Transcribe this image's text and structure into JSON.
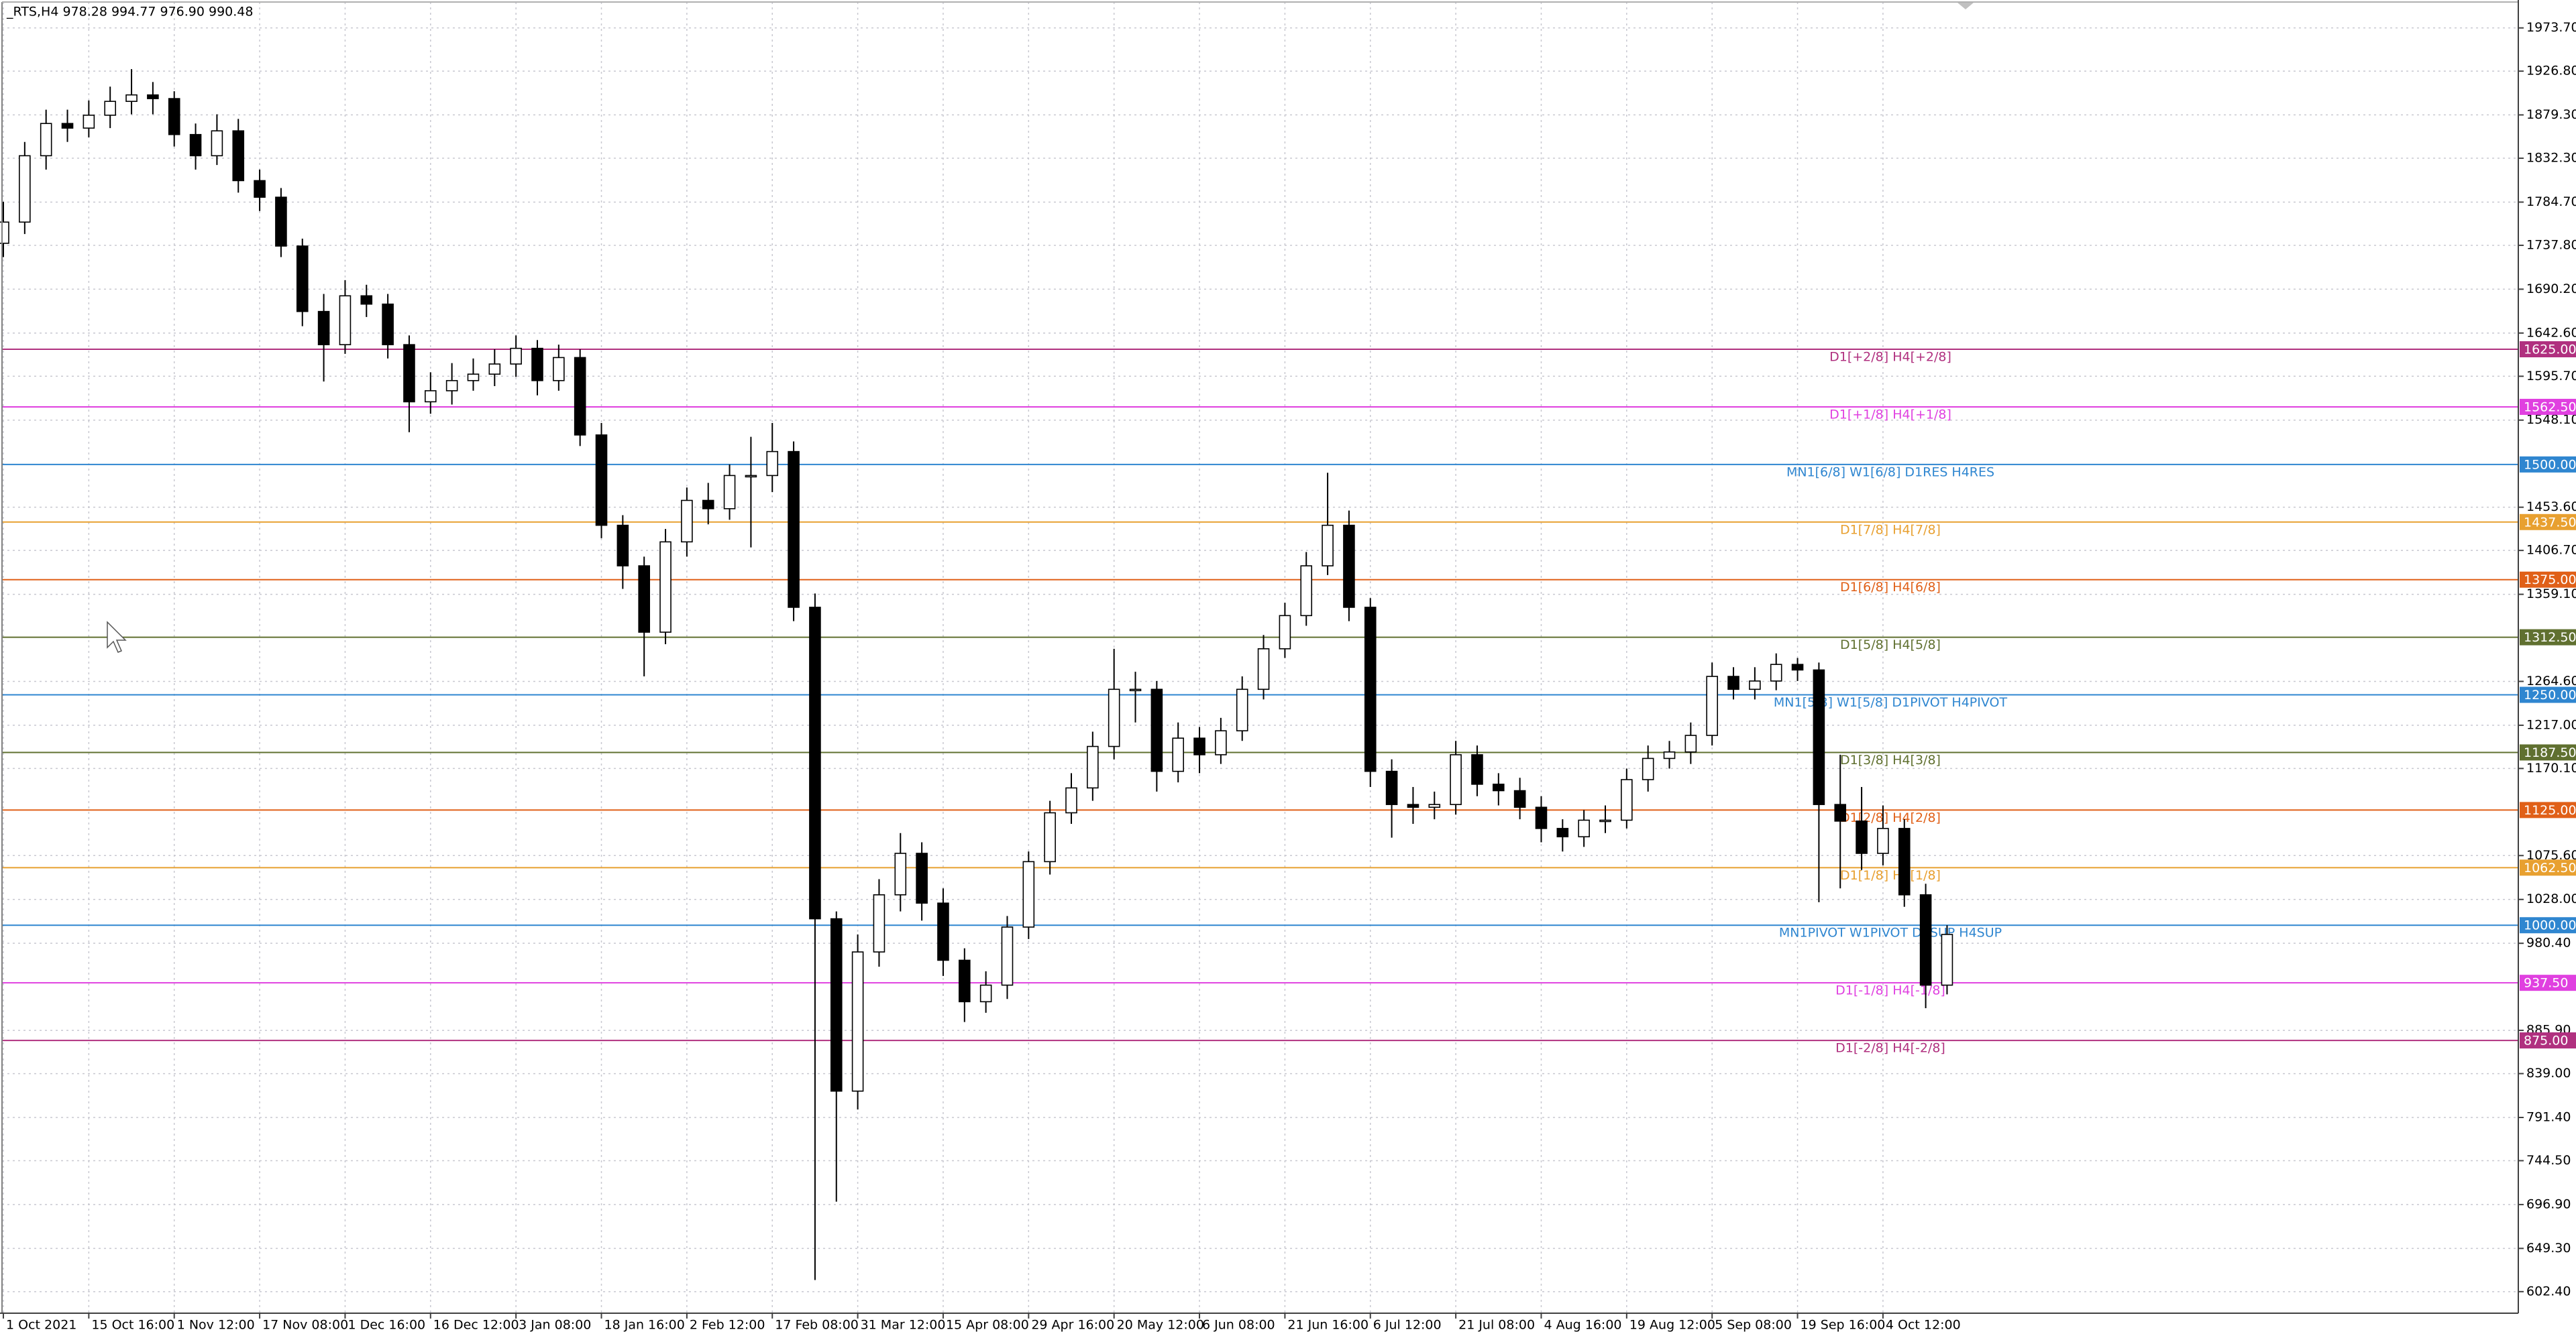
{
  "chart_data": {
    "type": "candlestick",
    "title": "_RTS,H4  978.28 994.77 976.90 990.48",
    "grid": true,
    "up_color": "#ffffff",
    "down_color": "#000000",
    "wick_color": "#000000",
    "ylim": [
      579,
      2004
    ],
    "yticks": [
      {
        "value": 1973.7,
        "label": "1973.70"
      },
      {
        "value": 1926.8,
        "label": "1926.80"
      },
      {
        "value": 1879.3,
        "label": "1879.30"
      },
      {
        "value": 1832.3,
        "label": "1832.30"
      },
      {
        "value": 1784.7,
        "label": "1784.70"
      },
      {
        "value": 1737.8,
        "label": "1737.80"
      },
      {
        "value": 1690.2,
        "label": "1690.20"
      },
      {
        "value": 1642.6,
        "label": "1642.60"
      },
      {
        "value": 1595.7,
        "label": "1595.70"
      },
      {
        "value": 1548.1,
        "label": "1548.10"
      },
      {
        "value": 1453.6,
        "label": "1453.60"
      },
      {
        "value": 1406.7,
        "label": "1406.70"
      },
      {
        "value": 1359.1,
        "label": "1359.10"
      },
      {
        "value": 1264.6,
        "label": "1264.60"
      },
      {
        "value": 1217,
        "label": "1217.00"
      },
      {
        "value": 1170.1,
        "label": "1170.10"
      },
      {
        "value": 1075.6,
        "label": "1075.60"
      },
      {
        "value": 1028,
        "label": "1028.00"
      },
      {
        "value": 980.4,
        "label": "980.40"
      },
      {
        "value": 885.9,
        "label": "885.90"
      },
      {
        "value": 839,
        "label": "839.00"
      },
      {
        "value": 791.4,
        "label": "791.40"
      },
      {
        "value": 744.5,
        "label": "744.50"
      },
      {
        "value": 696.9,
        "label": "696.90"
      },
      {
        "value": 649.3,
        "label": "649.30"
      },
      {
        "value": 602.4,
        "label": "602.40"
      }
    ],
    "categories": [
      "1 Oct 2021",
      null,
      null,
      null,
      "15 Oct 16:00",
      null,
      null,
      null,
      "1 Nov 12:00",
      null,
      null,
      null,
      "17 Nov 08:00",
      null,
      null,
      null,
      "1 Dec 16:00",
      null,
      null,
      null,
      "16 Dec 12:00",
      null,
      null,
      null,
      "3 Jan 08:00",
      null,
      null,
      null,
      "18 Jan 16:00",
      null,
      null,
      null,
      "2 Feb 12:00",
      null,
      null,
      null,
      "17 Feb 08:00",
      null,
      null,
      null,
      "31 Mar 12:00",
      null,
      null,
      null,
      "15 Apr 08:00",
      null,
      null,
      null,
      "29 Apr 16:00",
      null,
      null,
      null,
      "20 May 12:00",
      null,
      null,
      null,
      "6 Jun 08:00",
      null,
      null,
      null,
      "21 Jun 16:00",
      null,
      null,
      null,
      "6 Jul 12:00",
      null,
      null,
      null,
      "21 Jul 08:00",
      null,
      null,
      null,
      "4 Aug 16:00",
      null,
      null,
      null,
      "19 Aug 12:00",
      null,
      null,
      null,
      "5 Sep 08:00",
      null,
      null,
      null,
      "19 Sep 16:00",
      null,
      null,
      null,
      "4 Oct 12:00",
      null,
      null,
      null
    ],
    "open": [
      1740,
      1763,
      1835,
      1870,
      1865,
      1879,
      1894,
      1901,
      1897,
      1858,
      1835,
      1862,
      1808,
      1790,
      1737,
      1666,
      1630,
      1683,
      1674,
      1630,
      1568,
      1580,
      1591,
      1598,
      1609,
      1626,
      1591,
      1616,
      1532,
      1434,
      1390,
      1318,
      1416,
      1461,
      1452,
      1488,
      1488,
      1514,
      1345,
      1007,
      820,
      971,
      1033,
      1078,
      1024,
      962,
      917,
      935,
      998,
      1069,
      1122,
      1149,
      1194,
      1256,
      1256,
      1167,
      1203,
      1185,
      1211,
      1256,
      1300,
      1336,
      1390,
      1434,
      1345,
      1167,
      1131,
      1128,
      1131,
      1185,
      1153,
      1146,
      1128,
      1105,
      1096,
      1114,
      1114,
      1158,
      1181,
      1188,
      1206,
      1270,
      1256,
      1265,
      1283,
      1277,
      1131,
      1113,
      1078,
      1105,
      1033,
      935
    ],
    "high": [
      1785,
      1850,
      1885,
      1885,
      1895,
      1910,
      1929,
      1915,
      1905,
      1870,
      1880,
      1875,
      1820,
      1800,
      1745,
      1685,
      1700,
      1695,
      1685,
      1640,
      1600,
      1610,
      1615,
      1625,
      1640,
      1635,
      1630,
      1625,
      1545,
      1445,
      1400,
      1430,
      1475,
      1480,
      1500,
      1530,
      1545,
      1525,
      1360,
      1015,
      990,
      1050,
      1100,
      1090,
      1040,
      975,
      950,
      1010,
      1080,
      1135,
      1165,
      1210,
      1300,
      1275,
      1265,
      1220,
      1215,
      1225,
      1270,
      1315,
      1350,
      1405,
      1491,
      1450,
      1355,
      1180,
      1150,
      1145,
      1200,
      1195,
      1165,
      1160,
      1140,
      1115,
      1125,
      1130,
      1170,
      1195,
      1200,
      1220,
      1285,
      1280,
      1280,
      1295,
      1290,
      1285,
      1185,
      1150,
      1130,
      1115,
      1045,
      1000
    ],
    "low": [
      1725,
      1750,
      1820,
      1850,
      1855,
      1865,
      1880,
      1880,
      1845,
      1820,
      1825,
      1795,
      1775,
      1725,
      1650,
      1590,
      1620,
      1660,
      1615,
      1535,
      1555,
      1565,
      1580,
      1585,
      1595,
      1575,
      1580,
      1520,
      1420,
      1365,
      1270,
      1305,
      1400,
      1435,
      1440,
      1410,
      1470,
      1330,
      615,
      700,
      800,
      955,
      1015,
      1005,
      945,
      895,
      905,
      920,
      985,
      1055,
      1110,
      1135,
      1180,
      1220,
      1145,
      1155,
      1165,
      1175,
      1200,
      1245,
      1290,
      1325,
      1380,
      1330,
      1150,
      1095,
      1110,
      1115,
      1120,
      1140,
      1130,
      1115,
      1090,
      1080,
      1085,
      1100,
      1105,
      1145,
      1170,
      1175,
      1195,
      1245,
      1245,
      1255,
      1265,
      1025,
      1040,
      1060,
      1065,
      1020,
      910,
      925
    ],
    "close": [
      1763,
      1835,
      1870,
      1865,
      1879,
      1894,
      1901,
      1897,
      1858,
      1835,
      1862,
      1808,
      1790,
      1737,
      1666,
      1630,
      1683,
      1674,
      1630,
      1568,
      1580,
      1591,
      1598,
      1609,
      1626,
      1591,
      1616,
      1532,
      1434,
      1390,
      1318,
      1416,
      1461,
      1452,
      1488,
      1488,
      1514,
      1345,
      1007,
      820,
      971,
      1033,
      1078,
      1024,
      962,
      917,
      935,
      998,
      1069,
      1122,
      1149,
      1194,
      1256,
      1256,
      1167,
      1203,
      1185,
      1211,
      1256,
      1300,
      1336,
      1390,
      1434,
      1345,
      1167,
      1131,
      1128,
      1131,
      1185,
      1153,
      1146,
      1128,
      1105,
      1096,
      1114,
      1114,
      1158,
      1181,
      1188,
      1206,
      1270,
      1256,
      1265,
      1283,
      1277,
      1131,
      1113,
      1078,
      1105,
      1033,
      935,
      990
    ],
    "levels": [
      {
        "value": 1625,
        "label": "1625.00",
        "text": "D1[+2/8] H4[+2/8]",
        "color": "#b0307f"
      },
      {
        "value": 1562.5,
        "label": "1562.50",
        "text": "D1[+1/8] H4[+1/8]",
        "color": "#e040e0"
      },
      {
        "value": 1500,
        "label": "1500.00",
        "text": "MN1[6/8] W1[6/8] D1RES H4RES",
        "color": "#2f86d0"
      },
      {
        "value": 1437.5,
        "label": "1437.50",
        "text": "D1[7/8] H4[7/8]",
        "color": "#e8a030"
      },
      {
        "value": 1375,
        "label": "1375.00",
        "text": "D1[6/8] H4[6/8]",
        "color": "#e06018"
      },
      {
        "value": 1312.5,
        "label": "1312.50",
        "text": "D1[5/8] H4[5/8]",
        "color": "#607030"
      },
      {
        "value": 1250,
        "label": "1250.00",
        "text": "MN1[5/8] W1[5/8] D1PIVOT H4PIVOT",
        "color": "#2f86d0"
      },
      {
        "value": 1187.5,
        "label": "1187.50",
        "text": "D1[3/8] H4[3/8]",
        "color": "#607030"
      },
      {
        "value": 1125,
        "label": "1125.00",
        "text": "D1[2/8] H4[2/8]",
        "color": "#e06018"
      },
      {
        "value": 1062.5,
        "label": "1062.50",
        "text": "D1[1/8] H4[1/8]",
        "color": "#e8a030"
      },
      {
        "value": 1000,
        "label": "1000.00",
        "text": "MN1PIVOT W1PIVOT D1SUP H4SUP",
        "color": "#2f86d0"
      },
      {
        "value": 937.5,
        "label": "937.50",
        "text": "D1[-1/8] H4[-1/8]",
        "color": "#e040e0"
      },
      {
        "value": 875,
        "label": "875.00",
        "text": "D1[-2/8] H4[-2/8]",
        "color": "#b0307f"
      }
    ]
  }
}
